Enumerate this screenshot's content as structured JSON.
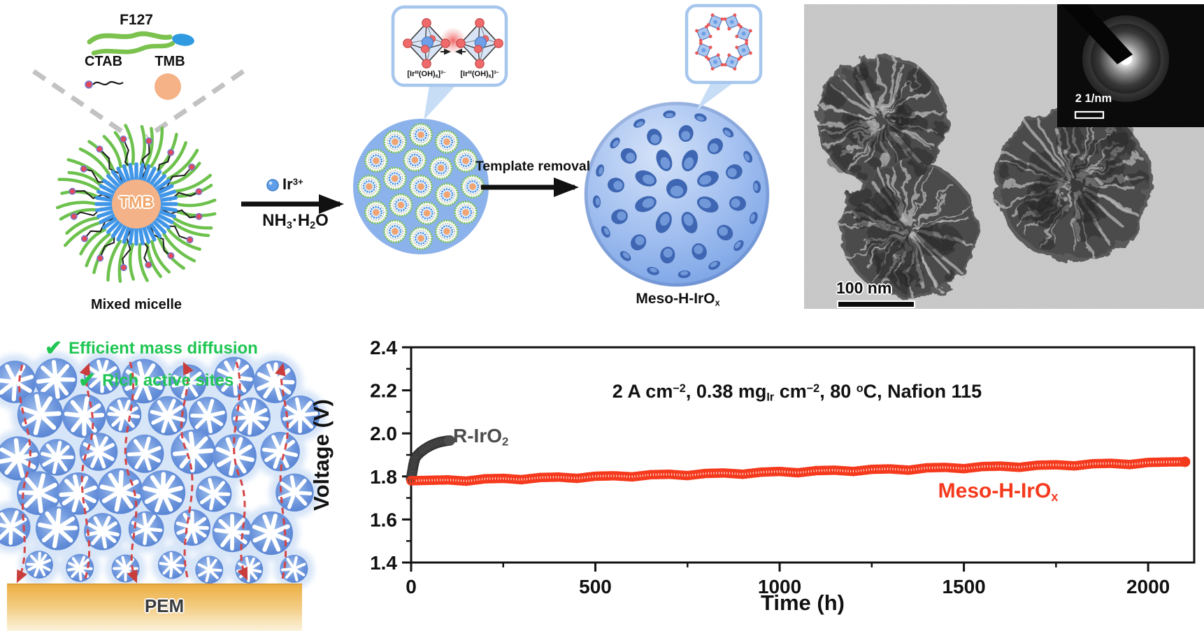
{
  "figure": {
    "reagents": {
      "f127": "F127",
      "ctab": "CTAB",
      "tmb": "TMB"
    },
    "micelle": {
      "core_text": "TMB",
      "label": "Mixed micelle"
    },
    "step1": {
      "ion_rich": [
        [
          "",
          "Ir"
        ],
        [
          "sup",
          "3+"
        ]
      ],
      "solution_rich": [
        [
          "",
          "NH"
        ],
        [
          "sub",
          "3"
        ],
        [
          "",
          "·H"
        ],
        [
          "sub",
          "2"
        ],
        [
          "",
          "O"
        ]
      ]
    },
    "octahedra_inset": {
      "left_label_rich": [
        [
          "",
          "[Ir"
        ],
        [
          "sup",
          "III"
        ],
        [
          "",
          "(OH)"
        ],
        [
          "sub",
          "6"
        ],
        [
          "",
          "]"
        ],
        [
          "sup",
          "3−"
        ]
      ],
      "right_label_rich": [
        [
          "",
          "[Ir"
        ],
        [
          "sup",
          "III"
        ],
        [
          "",
          "(OH)"
        ],
        [
          "sub",
          "6"
        ],
        [
          "",
          "]"
        ],
        [
          "sup",
          "3−"
        ]
      ]
    },
    "step2_label": "Template removal",
    "product_label_rich": [
      [
        "",
        "Meso-H-IrO"
      ],
      [
        "sub",
        "x"
      ]
    ],
    "tem": {
      "scale_bar": "100 nm",
      "saed_scale": "2 1/nm"
    },
    "benefits": [
      {
        "check": "✔",
        "text": "Efficient mass diffusion"
      },
      {
        "check": "✔",
        "text": "Rich active sites"
      }
    ],
    "membrane_label": "PEM",
    "colors": {
      "accent_red": "#f5391c",
      "series_gray": "#4d4d4d",
      "check_green": "#1fc653",
      "pem_yellow": "#ecae43",
      "particle_blue": "#5c8ad8"
    }
  },
  "chart_data": {
    "type": "line",
    "title": "",
    "xlabel": "Time (h)",
    "ylabel": "Voltage (V)",
    "xlim": [
      0,
      2125
    ],
    "ylim": [
      1.4,
      2.4
    ],
    "x_ticks": [
      "0",
      "500",
      "1000",
      "1500",
      "2000"
    ],
    "x_minor_step": 250,
    "y_ticks": [
      "2.4",
      "2.2",
      "2.0",
      "1.8",
      "1.6",
      "1.4"
    ],
    "y_minor_step": 0.1,
    "grid": false,
    "annotation_rich": [
      [
        "",
        "2 A cm"
      ],
      [
        "sup",
        "−2"
      ],
      [
        "",
        ", 0.38 mg"
      ],
      [
        "sub",
        "Ir"
      ],
      [
        "",
        " cm"
      ],
      [
        "sup",
        "−2"
      ],
      [
        "",
        ", 80 "
      ],
      [
        "sup",
        "o"
      ],
      [
        "",
        "C, Nafion 115"
      ]
    ],
    "series": [
      {
        "name": "R-IrO2",
        "label_rich": [
          [
            "",
            "R-IrO"
          ],
          [
            "sub",
            "2"
          ]
        ],
        "color": "#4d4d4d",
        "marker": "filled",
        "points": [
          [
            0,
            1.79
          ],
          [
            3,
            1.82
          ],
          [
            6,
            1.85
          ],
          [
            9,
            1.873
          ],
          [
            12,
            1.888
          ],
          [
            18,
            1.9
          ],
          [
            25,
            1.912
          ],
          [
            35,
            1.925
          ],
          [
            45,
            1.936
          ],
          [
            55,
            1.945
          ],
          [
            65,
            1.952
          ],
          [
            75,
            1.958
          ],
          [
            85,
            1.962
          ],
          [
            95,
            1.965
          ],
          [
            105,
            1.967
          ]
        ]
      },
      {
        "name": "Meso-H-IrOx",
        "label_rich": [
          [
            "",
            "Meso-H-IrO"
          ],
          [
            "sub",
            "x"
          ]
        ],
        "color": "#f5391c",
        "marker": "open",
        "points": [
          [
            0,
            1.78
          ],
          [
            50,
            1.782
          ],
          [
            100,
            1.784
          ],
          [
            150,
            1.778
          ],
          [
            200,
            1.789
          ],
          [
            250,
            1.791
          ],
          [
            300,
            1.785
          ],
          [
            350,
            1.795
          ],
          [
            400,
            1.797
          ],
          [
            450,
            1.791
          ],
          [
            500,
            1.801
          ],
          [
            550,
            1.803
          ],
          [
            600,
            1.798
          ],
          [
            650,
            1.808
          ],
          [
            700,
            1.81
          ],
          [
            750,
            1.804
          ],
          [
            800,
            1.814
          ],
          [
            850,
            1.816
          ],
          [
            900,
            1.81
          ],
          [
            950,
            1.82
          ],
          [
            1000,
            1.823
          ],
          [
            1050,
            1.817
          ],
          [
            1100,
            1.827
          ],
          [
            1150,
            1.829
          ],
          [
            1200,
            1.823
          ],
          [
            1250,
            1.833
          ],
          [
            1300,
            1.835
          ],
          [
            1350,
            1.829
          ],
          [
            1400,
            1.84
          ],
          [
            1450,
            1.842
          ],
          [
            1500,
            1.836
          ],
          [
            1550,
            1.846
          ],
          [
            1600,
            1.848
          ],
          [
            1650,
            1.842
          ],
          [
            1700,
            1.852
          ],
          [
            1750,
            1.854
          ],
          [
            1800,
            1.849
          ],
          [
            1850,
            1.859
          ],
          [
            1900,
            1.861
          ],
          [
            1950,
            1.855
          ],
          [
            2000,
            1.865
          ],
          [
            2050,
            1.867
          ],
          [
            2100,
            1.868
          ]
        ]
      }
    ]
  }
}
